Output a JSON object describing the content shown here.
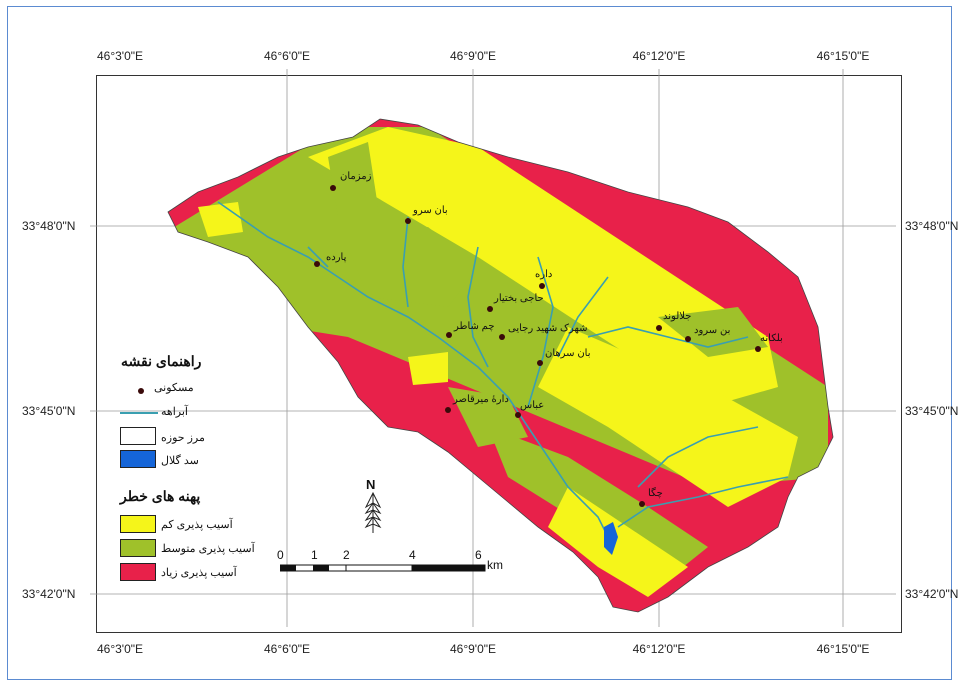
{
  "map": {
    "top_ticks": [
      "46°3'0\"E",
      "46°6'0\"E",
      "46°9'0\"E",
      "46°12'0\"E",
      "46°15'0\"E"
    ],
    "bottom_ticks": [
      "46°3'0\"E",
      "46°6'0\"E",
      "46°9'0\"E",
      "46°12'0\"E",
      "46°15'0\"E"
    ],
    "left_ticks": [
      "33°48'0\"N",
      "33°45'0\"N",
      "33°42'0\"N"
    ],
    "right_ticks": [
      "33°48'0\"N",
      "33°45'0\"N",
      "33°42'0\"N"
    ]
  },
  "legend": {
    "title": "راهنمای نقشه",
    "items": [
      "مسکونی",
      "آبراهه",
      "مرز حوزه",
      "سد گلال"
    ],
    "hazard_title": "پهنه های خطر",
    "hazard_items": [
      "آسیب پذیری کم",
      "آسیب پذیری متوسط",
      "آسیب پذیری زیاد"
    ],
    "colors": {
      "low": "#f5f51a",
      "medium": "#9fc12a",
      "high": "#e8214a",
      "dam": "#1565d8",
      "stream": "#3a9fb0"
    }
  },
  "places": [
    "زمزمان",
    "بان سرو",
    "پارده",
    "داره",
    "حاجی بختیار",
    "شهرک شهید رجایی",
    "چم شاطر",
    "بان سرهان",
    "جلالوند",
    "بن سرود",
    "بلکانه",
    "دارهٔ میرقاصر",
    "عباس",
    "چگا"
  ],
  "scale": {
    "labels": [
      "0",
      "1",
      "2",
      "4",
      "6"
    ],
    "unit": "km"
  },
  "north_label": "N"
}
